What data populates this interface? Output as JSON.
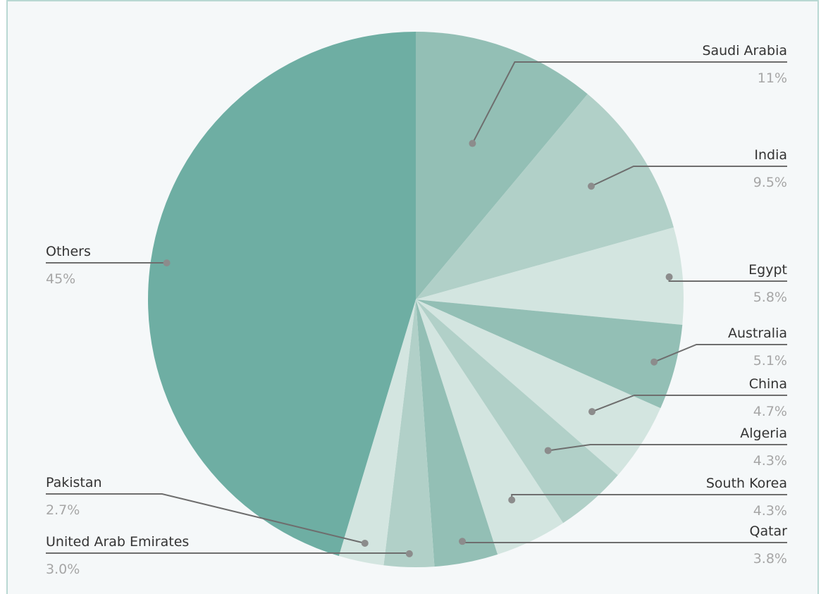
{
  "chart_data": {
    "type": "pie",
    "title": "",
    "slices": [
      {
        "label": "Saudi Arabia",
        "value": 11,
        "display": "11%",
        "color": "#93bfb5"
      },
      {
        "label": "India",
        "value": 9.5,
        "display": "9.5%",
        "color": "#b1d0c8"
      },
      {
        "label": "Egypt",
        "value": 5.8,
        "display": "5.8%",
        "color": "#d3e5e0"
      },
      {
        "label": "Australia",
        "value": 5.1,
        "display": "5.1%",
        "color": "#93bfb5"
      },
      {
        "label": "China",
        "value": 4.7,
        "display": "4.7%",
        "color": "#d3e5e0"
      },
      {
        "label": "Algeria",
        "value": 4.3,
        "display": "4.3%",
        "color": "#b1d0c8"
      },
      {
        "label": "South Korea",
        "value": 4.3,
        "display": "4.3%",
        "color": "#d3e5e0"
      },
      {
        "label": "Qatar",
        "value": 3.8,
        "display": "3.8%",
        "color": "#93bfb5"
      },
      {
        "label": "United Arab Emirates",
        "value": 3.0,
        "display": "3.0%",
        "color": "#b1d0c8"
      },
      {
        "label": "Pakistan",
        "value": 2.7,
        "display": "2.7%",
        "color": "#d3e5e0"
      },
      {
        "label": "Others",
        "value": 45,
        "display": "45%",
        "color": "#6eaea3"
      }
    ],
    "colors": {
      "background": "#f5f8f9",
      "border": "#b9d8d3",
      "leader_line": "#6e6e6e",
      "dot": "#8c8c8c",
      "label_text": "#333333",
      "percent_text": "#a6a6a6"
    }
  }
}
